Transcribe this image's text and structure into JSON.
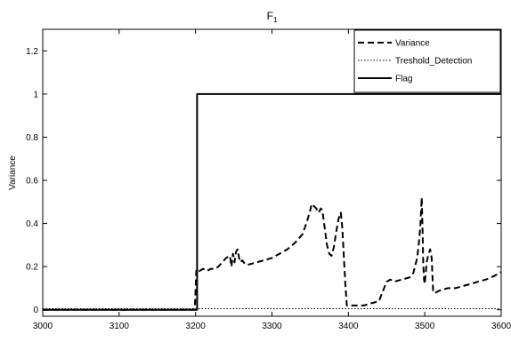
{
  "chart_data": {
    "type": "line",
    "title": "F",
    "title_subscript": "1",
    "xlabel": "",
    "ylabel": "Variance",
    "xlim": [
      3000,
      3600
    ],
    "ylim": [
      -0.03,
      1.3
    ],
    "xticks": [
      3000,
      3100,
      3200,
      3300,
      3400,
      3500,
      3600
    ],
    "xtick_labels": [
      "3000",
      "3100",
      "3200",
      "3300",
      "3400",
      "3500",
      "3600"
    ],
    "yticks": [
      0,
      0.2,
      0.4,
      0.6,
      0.8,
      1,
      1.2
    ],
    "ytick_labels": [
      "0",
      "0.2",
      "0.4",
      "0.6",
      "0.8",
      "1",
      "1.2"
    ],
    "grid": false,
    "legend_position": "top-right",
    "series": [
      {
        "name": "Variance",
        "style": "dashed",
        "color": "#000000",
        "x": [
          3000,
          3100,
          3199,
          3201,
          3203,
          3205,
          3210,
          3215,
          3220,
          3225,
          3230,
          3235,
          3240,
          3245,
          3247,
          3249,
          3251,
          3253,
          3255,
          3257,
          3259,
          3261,
          3265,
          3270,
          3280,
          3290,
          3300,
          3310,
          3320,
          3330,
          3340,
          3345,
          3350,
          3352,
          3355,
          3358,
          3361,
          3364,
          3366,
          3369,
          3372,
          3375,
          3378,
          3381,
          3384,
          3387,
          3390,
          3392,
          3394,
          3396,
          3398,
          3400,
          3410,
          3420,
          3430,
          3440,
          3450,
          3455,
          3460,
          3470,
          3480,
          3485,
          3490,
          3492,
          3494,
          3495,
          3496,
          3497,
          3498,
          3499,
          3500,
          3501,
          3502,
          3503,
          3505,
          3507,
          3509,
          3511,
          3512,
          3514,
          3520,
          3530,
          3540,
          3550,
          3560,
          3570,
          3580,
          3590,
          3600
        ],
        "values": [
          0,
          0,
          0,
          0.18,
          0.19,
          0.18,
          0.19,
          0.18,
          0.19,
          0.19,
          0.2,
          0.22,
          0.24,
          0.25,
          0.2,
          0.26,
          0.22,
          0.27,
          0.28,
          0.24,
          0.22,
          0.23,
          0.21,
          0.21,
          0.22,
          0.23,
          0.24,
          0.26,
          0.28,
          0.31,
          0.35,
          0.4,
          0.46,
          0.49,
          0.48,
          0.47,
          0.45,
          0.47,
          0.46,
          0.38,
          0.3,
          0.26,
          0.25,
          0.29,
          0.36,
          0.42,
          0.45,
          0.38,
          0.25,
          0.12,
          0.02,
          0.02,
          0.02,
          0.02,
          0.03,
          0.04,
          0.13,
          0.14,
          0.13,
          0.14,
          0.15,
          0.17,
          0.24,
          0.3,
          0.38,
          0.45,
          0.52,
          0.38,
          0.22,
          0.14,
          0.12,
          0.16,
          0.2,
          0.23,
          0.26,
          0.28,
          0.24,
          0.08,
          0.08,
          0.08,
          0.09,
          0.1,
          0.1,
          0.11,
          0.12,
          0.13,
          0.14,
          0.155,
          0.175
        ]
      },
      {
        "name": "Treshold_Detection",
        "style": "dotted",
        "color": "#000000",
        "x": [
          3000,
          3600
        ],
        "values": [
          0.005,
          0.005
        ]
      },
      {
        "name": "Flag",
        "style": "solid",
        "color": "#000000",
        "x": [
          3000,
          3202,
          3202,
          3600
        ],
        "values": [
          0,
          0,
          1,
          1
        ]
      }
    ]
  }
}
